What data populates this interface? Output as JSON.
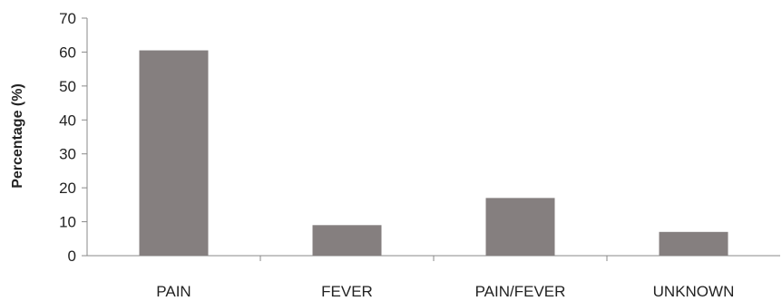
{
  "chart_data": {
    "type": "bar",
    "categories": [
      "PAIN",
      "FEVER",
      "PAIN/FEVER",
      "UNKNOWN"
    ],
    "values": [
      60.5,
      9,
      17,
      7
    ],
    "title": "",
    "xlabel": "",
    "ylabel": "Percentage (%)",
    "ylim": [
      0,
      70
    ],
    "yticks": [
      0,
      10,
      20,
      30,
      40,
      50,
      60,
      70
    ],
    "grid": false,
    "legend": "none",
    "colors": {
      "bar": "#857f7f",
      "axis": "#8a8a8a",
      "text": "#222222"
    }
  }
}
